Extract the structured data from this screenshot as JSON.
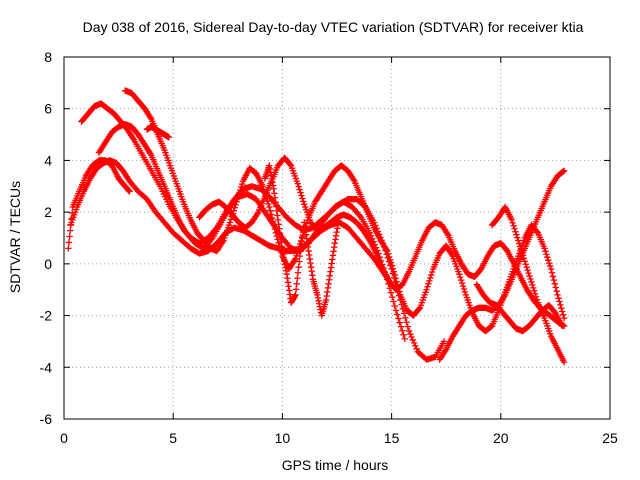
{
  "chart_data": {
    "type": "scatter",
    "title": "Day 038 of 2016, Sidereal Day-to-day VTEC variation (SDTVAR) for receiver ktia",
    "xlabel": "GPS time / hours",
    "ylabel": "SDTVAR / TECUs",
    "xlim": [
      0,
      25
    ],
    "ylim": [
      -6,
      8
    ],
    "xticks": [
      "0",
      "5",
      "10",
      "15",
      "20",
      "25"
    ],
    "yticks": [
      "-6",
      "-4",
      "-2",
      "0",
      "2",
      "4",
      "6",
      "8"
    ],
    "grid": true,
    "marker": "+",
    "color": "#ff0000",
    "series": [
      {
        "x": [
          0.2,
          0.4,
          0.7,
          1.0,
          1.3,
          1.6,
          1.9,
          2.2,
          2.5,
          2.8,
          3.0
        ],
        "y": [
          0.6,
          2.2,
          2.8,
          3.4,
          3.8,
          4.0,
          4.0,
          3.8,
          3.3,
          3.0,
          2.8
        ]
      },
      {
        "x": [
          0.3,
          0.6,
          0.9,
          1.2,
          1.5,
          1.8,
          2.1,
          2.4,
          2.7,
          3.0,
          3.4,
          3.8,
          4.2,
          4.6,
          5.0,
          5.4,
          5.8,
          6.2,
          6.6,
          7.0,
          7.4,
          7.8,
          8.2,
          8.6,
          9.0,
          9.4,
          9.8,
          10.2,
          10.6,
          11.0,
          11.4,
          11.8,
          12.2,
          12.6,
          13.0,
          13.4,
          13.8,
          14.2,
          14.6,
          15.0
        ],
        "y": [
          1.5,
          2.2,
          2.8,
          3.3,
          3.7,
          3.9,
          4.0,
          3.9,
          3.6,
          3.2,
          2.8,
          2.5,
          2.0,
          1.6,
          1.2,
          0.9,
          0.6,
          0.4,
          0.5,
          0.8,
          1.2,
          1.4,
          1.3,
          1.1,
          0.9,
          0.7,
          0.6,
          0.5,
          0.5,
          0.7,
          1.0,
          1.3,
          1.5,
          1.6,
          1.4,
          1.0,
          0.6,
          0.2,
          -0.3,
          -0.8
        ]
      },
      {
        "x": [
          0.8,
          1.1,
          1.4,
          1.7,
          2.0,
          2.3,
          2.6,
          2.9,
          3.2,
          3.6,
          4.0,
          4.4,
          4.8,
          5.2,
          5.6,
          6.0,
          6.4,
          6.8,
          7.2,
          7.6,
          8.0,
          8.4,
          8.8,
          9.2,
          9.6,
          10.0,
          10.4,
          10.8,
          11.2,
          11.6,
          12.0,
          12.4,
          12.8,
          13.2,
          13.6,
          14.0,
          14.4,
          14.8,
          15.2,
          15.6
        ],
        "y": [
          5.5,
          5.8,
          6.1,
          6.2,
          6.0,
          5.8,
          5.5,
          5.2,
          4.8,
          4.2,
          3.6,
          3.0,
          2.3,
          1.7,
          1.2,
          0.8,
          0.6,
          1.0,
          1.6,
          2.2,
          2.6,
          2.7,
          2.5,
          2.0,
          1.5,
          1.0,
          0.6,
          0.5,
          0.8,
          1.3,
          1.8,
          2.2,
          2.4,
          2.2,
          1.8,
          1.2,
          0.4,
          -0.6,
          -1.8,
          -2.9
        ]
      },
      {
        "x": [
          1.6,
          1.9,
          2.2,
          2.5,
          2.8,
          3.1,
          3.4,
          3.7,
          4.0,
          4.3,
          4.6,
          4.9,
          5.2,
          5.5,
          5.8,
          6.2,
          6.6,
          7.0,
          7.4,
          7.8,
          8.2,
          8.6,
          9.0,
          9.4,
          9.8,
          10.2,
          10.6,
          11.0,
          11.4,
          11.8,
          12.2,
          12.6,
          13.0,
          13.4,
          13.8,
          14.2,
          14.6,
          15.0,
          15.4,
          15.8,
          16.2,
          16.6,
          17.0,
          17.4
        ],
        "y": [
          4.3,
          4.7,
          5.1,
          5.3,
          5.4,
          5.3,
          5.0,
          4.6,
          4.2,
          3.6,
          3.0,
          2.4,
          1.8,
          1.3,
          1.0,
          0.8,
          1.0,
          1.4,
          2.0,
          2.5,
          2.9,
          3.0,
          2.9,
          2.6,
          2.2,
          1.8,
          1.5,
          1.3,
          1.4,
          1.7,
          2.0,
          2.3,
          2.5,
          2.5,
          2.2,
          1.6,
          0.8,
          -0.2,
          -1.4,
          -2.6,
          -3.4,
          -3.7,
          -3.6,
          -3.0
        ]
      },
      {
        "x": [
          2.8,
          3.1,
          3.4,
          3.7,
          4.0,
          4.3,
          4.6,
          4.9,
          5.2,
          5.5,
          5.8,
          6.1,
          6.4,
          6.7,
          7.0,
          7.3,
          7.6,
          7.9,
          8.2,
          8.5,
          8.8,
          9.1,
          9.4,
          9.7,
          10.0,
          10.3,
          10.6,
          10.9,
          11.2,
          11.5,
          11.8,
          12.1,
          12.4,
          12.7,
          13.0,
          13.3,
          13.6,
          13.9,
          14.2,
          14.5,
          14.8
        ],
        "y": [
          6.7,
          6.6,
          6.3,
          6.0,
          5.6,
          5.0,
          4.4,
          3.7,
          3.0,
          2.3,
          1.7,
          1.2,
          0.9,
          0.6,
          0.5,
          0.9,
          1.6,
          2.4,
          3.2,
          3.7,
          3.5,
          3.0,
          2.2,
          1.2,
          0.3,
          -0.2,
          0.2,
          1.0,
          1.8,
          2.4,
          2.8,
          3.2,
          3.6,
          3.8,
          3.6,
          3.2,
          2.6,
          2.0,
          1.4,
          0.9,
          0.5
        ]
      },
      {
        "x": [
          6.2,
          6.5,
          6.8,
          7.1,
          7.4,
          7.7,
          8.0,
          8.3,
          8.6,
          8.9,
          9.2,
          9.5,
          9.8,
          10.1,
          10.4,
          10.7,
          11.0,
          11.3,
          11.6,
          11.9,
          12.2,
          12.5,
          12.8,
          13.1,
          13.4,
          13.7,
          14.0,
          14.3,
          14.6,
          14.9,
          15.2,
          15.5,
          15.8,
          16.1,
          16.4,
          16.7,
          17.0,
          17.3,
          17.6,
          17.9,
          18.2,
          18.5,
          18.8,
          19.1,
          19.4,
          19.7,
          20.0,
          20.3,
          20.6,
          20.9,
          21.2,
          21.5,
          21.8,
          22.1,
          22.4,
          22.7,
          22.9
        ],
        "y": [
          1.8,
          2.1,
          2.3,
          2.4,
          2.2,
          1.9,
          1.6,
          1.4,
          1.6,
          2.0,
          2.6,
          3.2,
          3.8,
          4.1,
          3.8,
          3.1,
          2.3,
          1.6,
          1.3,
          1.4,
          1.6,
          1.8,
          1.9,
          1.8,
          1.6,
          1.3,
          0.9,
          0.4,
          -0.2,
          -0.7,
          -1.0,
          -0.8,
          -0.3,
          0.3,
          0.9,
          1.4,
          1.6,
          1.5,
          1.1,
          0.5,
          0.0,
          -0.4,
          -0.5,
          -0.2,
          0.3,
          0.7,
          0.8,
          0.5,
          0.0,
          -0.5,
          -1.0,
          -1.4,
          -1.7,
          -1.9,
          -2.1,
          -2.3,
          -2.4
        ]
      },
      {
        "x": [
          9.2,
          9.4,
          9.6,
          9.8,
          10.0,
          10.2,
          10.4,
          10.6,
          10.8,
          11.0,
          11.2,
          11.4,
          11.6,
          11.8,
          12.0,
          12.2,
          12.4,
          12.6
        ],
        "y": [
          3.3,
          3.8,
          2.9,
          1.7,
          0.5,
          -0.4,
          -1.5,
          -1.2,
          0.3,
          1.6,
          0.5,
          -0.6,
          -1.2,
          -2.0,
          -1.4,
          -0.3,
          0.8,
          1.8
        ]
      },
      {
        "x": [
          14.8,
          15.1,
          15.4,
          15.7,
          16.0,
          16.3,
          16.6,
          16.9,
          17.2,
          17.5,
          17.8,
          18.1,
          18.4,
          18.7,
          19.0,
          19.3,
          19.6,
          19.9,
          20.2,
          20.5,
          20.8,
          21.1,
          21.4,
          21.7,
          22.0,
          22.3,
          22.6,
          22.9
        ],
        "y": [
          0.5,
          -0.3,
          -1.2,
          -1.8,
          -2.0,
          -1.7,
          -1.0,
          -0.2,
          0.4,
          0.7,
          0.3,
          -0.4,
          -1.2,
          -1.9,
          -2.4,
          -2.6,
          -2.4,
          -1.8,
          -1.1,
          -0.4,
          0.3,
          1.0,
          1.5,
          1.2,
          0.6,
          -0.2,
          -1.2,
          -2.1
        ]
      },
      {
        "x": [
          17.2,
          17.5,
          17.8,
          18.1,
          18.4,
          18.7,
          19.0,
          19.3,
          19.6,
          19.9,
          20.2,
          20.5,
          20.8,
          21.1,
          21.4,
          21.7,
          22.0,
          22.3,
          22.6,
          22.9
        ],
        "y": [
          -3.7,
          -3.3,
          -2.8,
          -2.4,
          -2.0,
          -1.8,
          -1.7,
          -1.7,
          -1.8,
          -1.6,
          -1.2,
          -0.6,
          0.0,
          0.6,
          1.2,
          1.8,
          2.4,
          3.0,
          3.4,
          3.6
        ]
      },
      {
        "x": [
          19.6,
          19.9,
          20.2,
          20.5,
          20.8,
          21.1,
          21.4,
          21.7,
          22.0,
          22.3,
          22.6,
          22.9
        ],
        "y": [
          1.5,
          1.8,
          2.2,
          1.7,
          0.9,
          0.1,
          -0.7,
          -1.5,
          -2.1,
          -2.8,
          -3.3,
          -3.8
        ]
      },
      {
        "x": [
          18.9,
          19.2,
          19.5,
          19.8,
          20.1,
          20.4,
          20.7,
          21.0,
          21.3,
          21.6,
          21.9,
          22.2,
          22.5,
          22.8
        ],
        "y": [
          -0.8,
          -1.2,
          -1.5,
          -1.6,
          -1.9,
          -2.2,
          -2.5,
          -2.6,
          -2.4,
          -2.1,
          -1.8,
          -1.6,
          -1.9,
          -2.4
        ]
      },
      {
        "x": [
          3.8,
          4.0,
          4.2,
          4.4,
          4.6,
          4.8
        ],
        "y": [
          5.2,
          5.3,
          5.2,
          5.1,
          5.0,
          4.9
        ]
      }
    ]
  }
}
